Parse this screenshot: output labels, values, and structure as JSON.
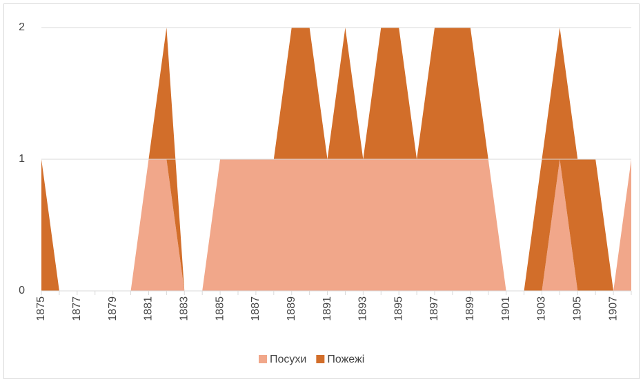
{
  "chart_data": {
    "type": "stacked_area",
    "categories": [
      "1875",
      null,
      "1877",
      null,
      "1879",
      null,
      "1881",
      null,
      "1883",
      null,
      "1885",
      null,
      "1887",
      null,
      "1889",
      null,
      "1891",
      null,
      "1893",
      null,
      "1895",
      null,
      "1897",
      null,
      "1899",
      null,
      "1901",
      null,
      "1903",
      null,
      "1905",
      null,
      "1907",
      null
    ],
    "series": [
      {
        "name": "Посухи",
        "color": "#f1a78a",
        "values": [
          0,
          0,
          0,
          0,
          0,
          0,
          1,
          1,
          0,
          0,
          1,
          1,
          1,
          1,
          1,
          1,
          1,
          1,
          1,
          1,
          1,
          1,
          1,
          1,
          1,
          1,
          0,
          0,
          0,
          1,
          0,
          0,
          0,
          1
        ]
      },
      {
        "name": "Пожежі",
        "color": "#d26e2a",
        "values": [
          1,
          0,
          0,
          0,
          0,
          0,
          0,
          1,
          0,
          0,
          0,
          0,
          0,
          0,
          1,
          1,
          0,
          1,
          0,
          1,
          1,
          0,
          1,
          1,
          1,
          0,
          0,
          0,
          1,
          1,
          1,
          1,
          0,
          0
        ]
      }
    ],
    "ylim": [
      0,
      2
    ],
    "yticks": [
      0,
      1,
      2
    ],
    "grid": true,
    "legend": "bottom"
  }
}
